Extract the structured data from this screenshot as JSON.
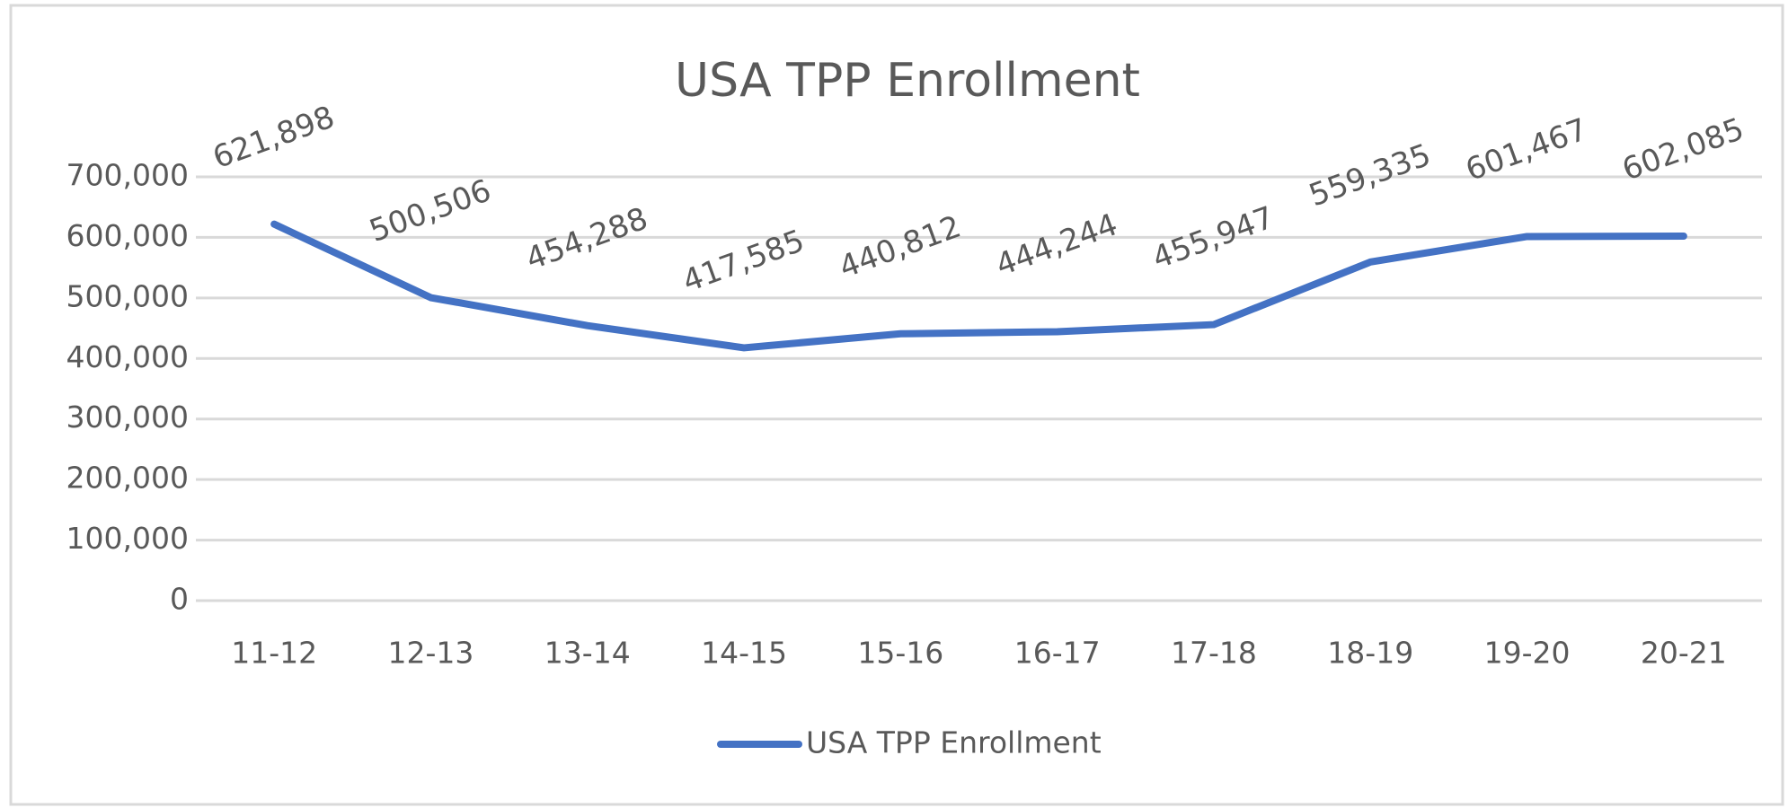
{
  "chart_data": {
    "type": "line",
    "title": "USA TPP Enrollment",
    "categories": [
      "11-12",
      "12-13",
      "13-14",
      "14-15",
      "15-16",
      "16-17",
      "17-18",
      "18-19",
      "19-20",
      "20-21"
    ],
    "series": [
      {
        "name": "USA TPP Enrollment",
        "color": "#4472c4",
        "values": [
          621898,
          500506,
          454288,
          417585,
          440812,
          444244,
          455947,
          559335,
          601467,
          602085
        ],
        "value_labels": [
          "621,898",
          "500,506",
          "454,288",
          "417,585",
          "440,812",
          "444,244",
          "455,947",
          "559,335",
          "601,467",
          "602,085"
        ]
      }
    ],
    "ylim": [
      0,
      700000
    ],
    "yticks": [
      0,
      {
        "value": 100000,
        "label": "100,000"
      },
      {
        "value": 200000,
        "label": "200,000"
      },
      {
        "value": 300000,
        "label": "300,000"
      },
      {
        "value": 400000,
        "label": "400,000"
      },
      {
        "value": 500000,
        "label": "500,000"
      },
      {
        "value": 600000,
        "label": "600,000"
      },
      {
        "value": 700000,
        "label": "700,000"
      }
    ],
    "grid": true,
    "legend": "bottom"
  }
}
